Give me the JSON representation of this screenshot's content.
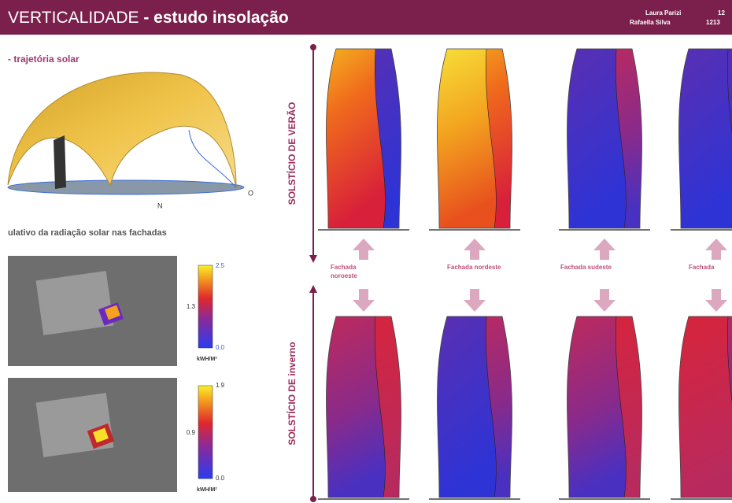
{
  "header": {
    "title": "VERTICALIDADE",
    "subtitle": "- estudo insolação",
    "authors": [
      "Laura Parizi",
      "Rafaella Silva"
    ],
    "ids": [
      "12",
      "1213"
    ]
  },
  "left": {
    "sun_path_title": "- trajetória solar",
    "compass": [
      "N",
      "O"
    ],
    "radiation_title": "ulativo da radiação solar nas fachadas",
    "scales": [
      {
        "ticks": [
          "2.5",
          "1.3",
          "0.0"
        ],
        "unit": "kWH/M²"
      },
      {
        "ticks": [
          "1.9",
          "0.9",
          "0.0"
        ],
        "unit": "kWH/M²"
      }
    ]
  },
  "right": {
    "summer": "SOLSTÍCIO DE VERÃO",
    "winter": "SOLSTÍCIO DE inverno",
    "facades": [
      "Fachada noroeste",
      "Fachada nordeste",
      "Fachada sudeste",
      "Fachada"
    ]
  }
}
